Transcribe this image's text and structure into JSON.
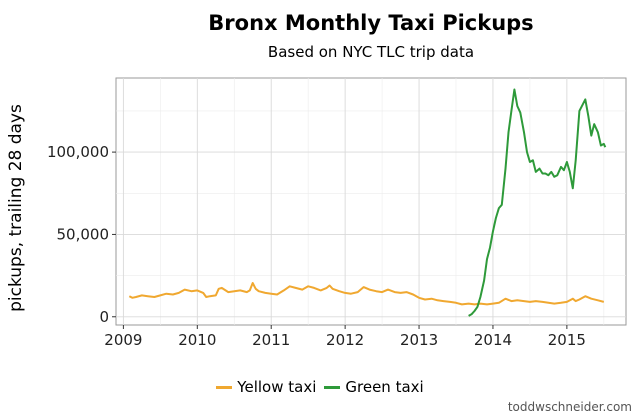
{
  "title": "Bronx Monthly Taxi Pickups",
  "subtitle": "Based on NYC TLC trip data",
  "credit": "toddwschneider.com",
  "chart_data": {
    "type": "line",
    "title": "Bronx Monthly Taxi Pickups",
    "subtitle": "Based on NYC TLC trip data",
    "xlabel": "",
    "ylabel": "pickups, trailing 28 days",
    "xlim": [
      2008.9,
      2015.8
    ],
    "ylim": [
      -5000,
      145000
    ],
    "xticks": [
      2009,
      2010,
      2011,
      2012,
      2013,
      2014,
      2015
    ],
    "xtick_labels": [
      "2009",
      "2010",
      "2011",
      "2012",
      "2013",
      "2014",
      "2015"
    ],
    "yticks": [
      0,
      50000,
      100000
    ],
    "ytick_labels": [
      "0",
      "50,000",
      "100,000"
    ],
    "grid": true,
    "legend_position": "bottom",
    "series": [
      {
        "name": "Yellow taxi",
        "color": "#f0a830",
        "points": [
          [
            2009.08,
            12500
          ],
          [
            2009.12,
            11500
          ],
          [
            2009.17,
            12000
          ],
          [
            2009.25,
            13000
          ],
          [
            2009.33,
            12500
          ],
          [
            2009.42,
            12000
          ],
          [
            2009.5,
            13000
          ],
          [
            2009.58,
            14000
          ],
          [
            2009.67,
            13500
          ],
          [
            2009.75,
            14500
          ],
          [
            2009.83,
            16500
          ],
          [
            2009.92,
            15500
          ],
          [
            2010.0,
            16000
          ],
          [
            2010.08,
            14500
          ],
          [
            2010.12,
            12000
          ],
          [
            2010.17,
            12500
          ],
          [
            2010.25,
            13000
          ],
          [
            2010.29,
            17000
          ],
          [
            2010.33,
            17500
          ],
          [
            2010.42,
            15000
          ],
          [
            2010.5,
            15500
          ],
          [
            2010.58,
            16000
          ],
          [
            2010.67,
            15000
          ],
          [
            2010.71,
            16000
          ],
          [
            2010.75,
            20500
          ],
          [
            2010.79,
            17000
          ],
          [
            2010.83,
            15500
          ],
          [
            2010.92,
            14500
          ],
          [
            2011.0,
            14000
          ],
          [
            2011.08,
            13500
          ],
          [
            2011.17,
            16000
          ],
          [
            2011.25,
            18500
          ],
          [
            2011.33,
            17500
          ],
          [
            2011.42,
            16500
          ],
          [
            2011.5,
            18500
          ],
          [
            2011.58,
            17500
          ],
          [
            2011.67,
            16000
          ],
          [
            2011.75,
            17500
          ],
          [
            2011.79,
            19000
          ],
          [
            2011.83,
            17000
          ],
          [
            2011.92,
            15500
          ],
          [
            2012.0,
            14500
          ],
          [
            2012.08,
            14000
          ],
          [
            2012.17,
            15000
          ],
          [
            2012.25,
            18000
          ],
          [
            2012.33,
            16500
          ],
          [
            2012.42,
            15500
          ],
          [
            2012.5,
            15000
          ],
          [
            2012.58,
            16500
          ],
          [
            2012.67,
            15000
          ],
          [
            2012.75,
            14500
          ],
          [
            2012.83,
            15000
          ],
          [
            2012.92,
            13500
          ],
          [
            2013.0,
            11500
          ],
          [
            2013.08,
            10500
          ],
          [
            2013.17,
            11000
          ],
          [
            2013.25,
            10000
          ],
          [
            2013.33,
            9500
          ],
          [
            2013.42,
            9000
          ],
          [
            2013.5,
            8500
          ],
          [
            2013.58,
            7500
          ],
          [
            2013.67,
            8000
          ],
          [
            2013.75,
            7500
          ],
          [
            2013.83,
            8000
          ],
          [
            2013.92,
            7500
          ],
          [
            2014.0,
            8000
          ],
          [
            2014.08,
            8500
          ],
          [
            2014.17,
            11000
          ],
          [
            2014.25,
            9500
          ],
          [
            2014.33,
            10000
          ],
          [
            2014.42,
            9500
          ],
          [
            2014.5,
            9000
          ],
          [
            2014.58,
            9500
          ],
          [
            2014.67,
            9000
          ],
          [
            2014.75,
            8500
          ],
          [
            2014.83,
            8000
          ],
          [
            2014.92,
            8500
          ],
          [
            2015.0,
            9000
          ],
          [
            2015.08,
            11000
          ],
          [
            2015.12,
            9500
          ],
          [
            2015.17,
            10500
          ],
          [
            2015.25,
            12500
          ],
          [
            2015.33,
            11000
          ],
          [
            2015.42,
            10000
          ],
          [
            2015.5,
            9000
          ]
        ]
      },
      {
        "name": "Green taxi",
        "color": "#2e9a3a",
        "points": [
          [
            2013.67,
            500
          ],
          [
            2013.71,
            1500
          ],
          [
            2013.75,
            3500
          ],
          [
            2013.79,
            6000
          ],
          [
            2013.83,
            12000
          ],
          [
            2013.88,
            22000
          ],
          [
            2013.92,
            35000
          ],
          [
            2013.96,
            42000
          ],
          [
            2014.0,
            52000
          ],
          [
            2014.04,
            60000
          ],
          [
            2014.08,
            66000
          ],
          [
            2014.12,
            68000
          ],
          [
            2014.17,
            90000
          ],
          [
            2014.21,
            112000
          ],
          [
            2014.25,
            125000
          ],
          [
            2014.29,
            138000
          ],
          [
            2014.33,
            128000
          ],
          [
            2014.37,
            124000
          ],
          [
            2014.42,
            112000
          ],
          [
            2014.46,
            100000
          ],
          [
            2014.5,
            94000
          ],
          [
            2014.54,
            95000
          ],
          [
            2014.58,
            88000
          ],
          [
            2014.63,
            90000
          ],
          [
            2014.67,
            87000
          ],
          [
            2014.71,
            87000
          ],
          [
            2014.75,
            86000
          ],
          [
            2014.79,
            88000
          ],
          [
            2014.83,
            85000
          ],
          [
            2014.87,
            86000
          ],
          [
            2014.92,
            91000
          ],
          [
            2014.96,
            89000
          ],
          [
            2015.0,
            94000
          ],
          [
            2015.04,
            88000
          ],
          [
            2015.08,
            78000
          ],
          [
            2015.12,
            95000
          ],
          [
            2015.17,
            125000
          ],
          [
            2015.25,
            132000
          ],
          [
            2015.29,
            122000
          ],
          [
            2015.33,
            110000
          ],
          [
            2015.37,
            117000
          ],
          [
            2015.42,
            112000
          ],
          [
            2015.46,
            104000
          ],
          [
            2015.5,
            105000
          ],
          [
            2015.52,
            103000
          ]
        ]
      }
    ]
  }
}
